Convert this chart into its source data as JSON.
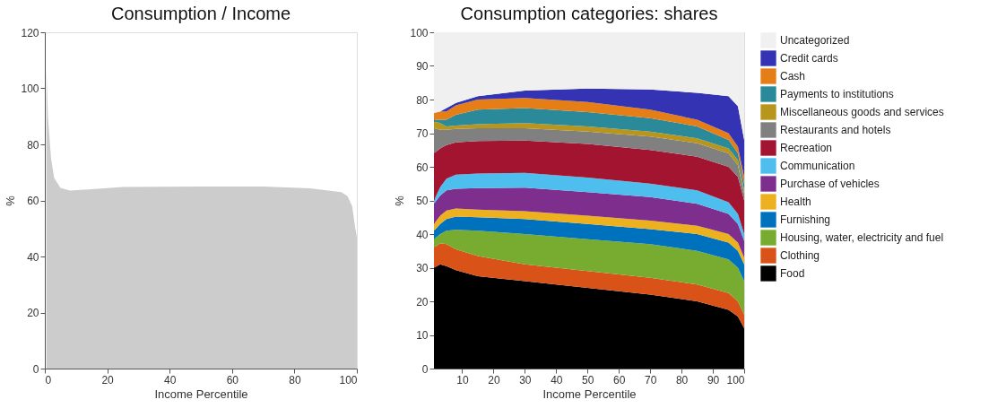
{
  "chart_data": [
    {
      "type": "area",
      "title": "Consumption / Income",
      "xlabel": "Income Percentile",
      "ylabel": "%",
      "color": "#cccccc",
      "x": [
        0.5,
        1,
        2,
        3,
        5,
        8,
        15,
        25,
        50,
        70,
        85,
        95,
        97,
        98.5,
        99.5,
        100
      ],
      "values": [
        107,
        90,
        75,
        68,
        64.5,
        63.5,
        64,
        64.8,
        65,
        65,
        64.3,
        63,
        61.5,
        58,
        50,
        47
      ],
      "xlim": [
        0,
        100
      ],
      "ylim": [
        0,
        120
      ],
      "xticks": [
        0,
        20,
        40,
        60,
        80,
        100
      ],
      "yticks": [
        0,
        20,
        40,
        60,
        80,
        100,
        120
      ]
    },
    {
      "type": "area",
      "stacked": true,
      "legend": "right",
      "title": "Consumption categories: shares",
      "xlabel": "Income Percentile",
      "ylabel": "%",
      "x": [
        1,
        3,
        5,
        8,
        15,
        30,
        50,
        70,
        85,
        95,
        98,
        100
      ],
      "xlim": [
        1,
        100
      ],
      "ylim": [
        0,
        100
      ],
      "xticks": [
        10,
        20,
        30,
        40,
        50,
        60,
        70,
        80,
        90,
        100
      ],
      "yticks": [
        0,
        10,
        20,
        30,
        40,
        50,
        60,
        70,
        80,
        90,
        100
      ],
      "series": [
        {
          "name": "Food",
          "color": "#000000",
          "values": [
            30,
            31,
            30.5,
            29.3,
            27.5,
            26,
            24,
            22,
            20,
            17.5,
            15.5,
            12
          ]
        },
        {
          "name": "Clothing",
          "color": "#d95319",
          "values": [
            6,
            6.3,
            6.5,
            6.2,
            6,
            5,
            5,
            5,
            5,
            5,
            4.5,
            4
          ]
        },
        {
          "name": "Housing, water, electricity and fuel",
          "color": "#77ac30",
          "values": [
            2.5,
            2.7,
            4,
            5.8,
            7.5,
            9,
            9.5,
            10,
            10,
            10,
            10,
            10
          ]
        },
        {
          "name": "Furnishing",
          "color": "#0072bd",
          "values": [
            2.5,
            3,
            3.5,
            3.9,
            4,
            4.5,
            4.5,
            4.5,
            5,
            5,
            5,
            5
          ]
        },
        {
          "name": "Health",
          "color": "#edb120",
          "values": [
            2,
            2.5,
            2.5,
            2.4,
            2.3,
            2.3,
            2.5,
            2.5,
            2.5,
            2.5,
            2.5,
            2
          ]
        },
        {
          "name": "Purchase of vehicles",
          "color": "#7e2f8e",
          "values": [
            6,
            6,
            6,
            5.9,
            6.4,
            7,
            7,
            7,
            6.5,
            6,
            5.5,
            5
          ]
        },
        {
          "name": "Communication",
          "color": "#4dbeee",
          "values": [
            1,
            2.5,
            3.5,
            4.2,
            4.3,
            4.4,
            4.3,
            4,
            4,
            3.5,
            3,
            2
          ]
        },
        {
          "name": "Recreation",
          "color": "#a2142f",
          "values": [
            14,
            11.5,
            10,
            9.6,
            9.7,
            9.6,
            10,
            10,
            10,
            10.5,
            11,
            10
          ]
        },
        {
          "name": "Restaurants and hotels",
          "color": "#808080",
          "values": [
            7.5,
            5.5,
            4.5,
            4,
            3.8,
            3.7,
            3.7,
            4,
            4,
            4,
            3.5,
            2
          ]
        },
        {
          "name": "Miscellaneous goods and services",
          "color": "#b8961e",
          "values": [
            2,
            2,
            1,
            1,
            1.2,
            1.5,
            1.5,
            1.5,
            1.5,
            1.5,
            1.5,
            1
          ]
        },
        {
          "name": "Payments to institutions",
          "color": "#2a8a9a",
          "values": [
            0.5,
            1,
            2,
            3.2,
            4.3,
            4.5,
            4.3,
            4,
            3.5,
            2.5,
            2,
            2
          ]
        },
        {
          "name": "Cash",
          "color": "#e67e17",
          "values": [
            2,
            2.5,
            2.5,
            2.8,
            3,
            3,
            3,
            2.5,
            2,
            2,
            2,
            2
          ]
        },
        {
          "name": "Credit cards",
          "color": "#3333b3",
          "values": [
            0,
            0,
            1,
            0.7,
            1,
            2.2,
            4,
            6,
            8,
            11,
            12,
            11
          ]
        },
        {
          "name": "Uncategorized",
          "color": "#f0f0f0",
          "values": [
            24,
            23.5,
            22.5,
            21,
            19,
            17.3,
            16.7,
            17,
            18,
            19,
            22,
            32
          ]
        }
      ]
    }
  ]
}
